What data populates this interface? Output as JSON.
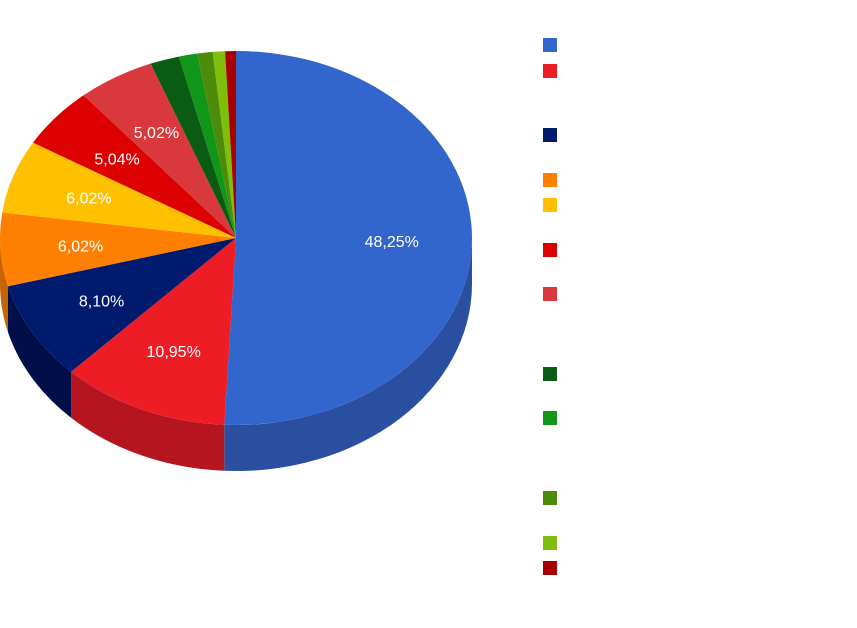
{
  "chart_data": {
    "type": "pie",
    "style": "3d",
    "title": "",
    "legend_position": "right",
    "slices": [
      {
        "value": 48.25,
        "label": "48,25%",
        "color": "#3366cc",
        "side_color": "#2a4fa0"
      },
      {
        "value": 10.95,
        "label": "10,95%",
        "color": "#ee1c25",
        "side_color": "#b5151f"
      },
      {
        "value": 8.1,
        "label": "8,10%",
        "color": "#001a6e",
        "side_color": "#000f4a"
      },
      {
        "value": 6.02,
        "label": "6,02%",
        "color": "#ff8000",
        "side_color": "#c86400"
      },
      {
        "value": 6.02,
        "label": "6,02%",
        "color": "#ffc000",
        "side_color": "#c89600"
      },
      {
        "value": 5.04,
        "label": "5,04%",
        "color": "#dd0000",
        "side_color": "#a80000"
      },
      {
        "value": 5.02,
        "label": "5,02%",
        "color": "#d9383d",
        "side_color": "#a82a2e"
      },
      {
        "value": 1.9,
        "label": "",
        "color": "#0a5c12",
        "side_color": "#06420c"
      },
      {
        "value": 1.2,
        "label": "",
        "color": "#109618",
        "side_color": "#0c7212"
      },
      {
        "value": 1.0,
        "label": "",
        "color": "#4c8c0a",
        "side_color": "#386a06"
      },
      {
        "value": 0.8,
        "label": "",
        "color": "#7fbe0a",
        "side_color": "#5f8e06"
      },
      {
        "value": 0.7,
        "label": "",
        "color": "#a80000",
        "side_color": "#7a0000"
      }
    ]
  }
}
